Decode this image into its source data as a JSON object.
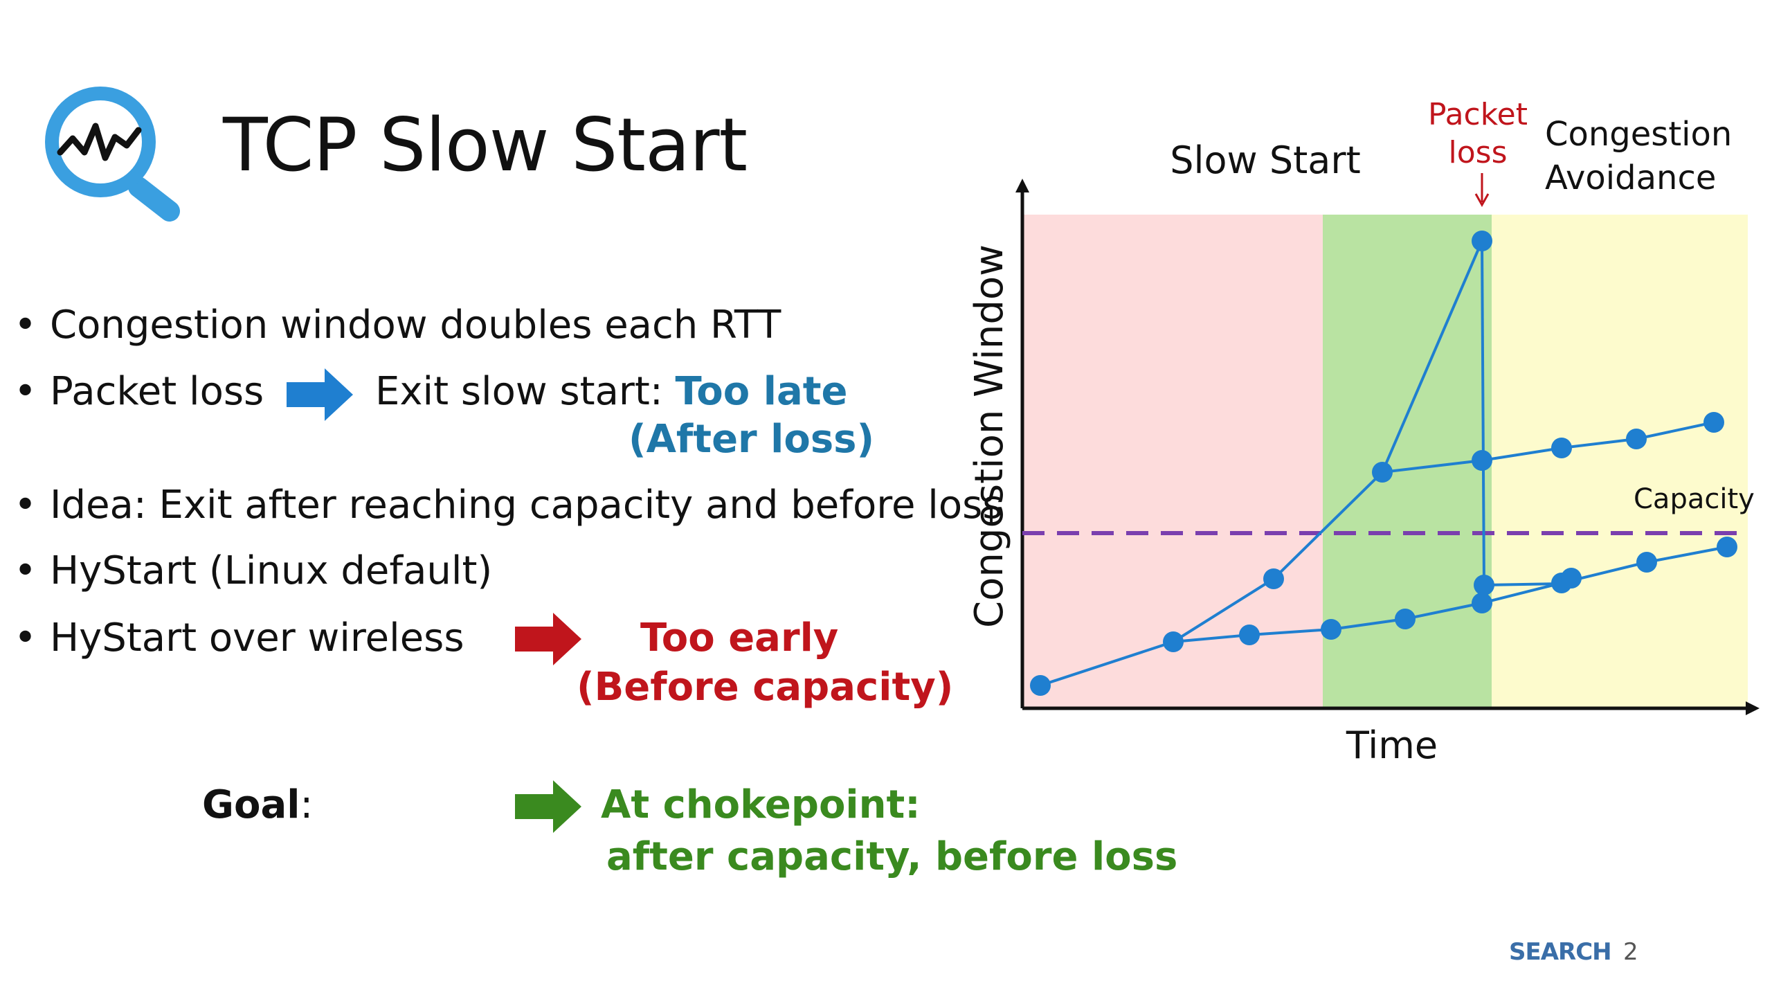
{
  "slide": {
    "title": "TCP Slow Start",
    "page_number": "2",
    "brand": "SEARCH"
  },
  "bullets": [
    {
      "text": "Congestion window doubles each RTT"
    },
    {
      "text": "Packet loss",
      "arrow_color": "#1f7fd0",
      "result_prefix": "Exit slow start: ",
      "result_highlight": "Too late",
      "result_line2": "(After loss)"
    },
    {
      "text": "Idea: Exit after reaching capacity and before loss"
    },
    {
      "text": "HyStart (Linux default)"
    },
    {
      "text": "HyStart over wireless",
      "arrow_color": "#c0151c",
      "result_highlight": "Too early",
      "result_line2": "(Before capacity)"
    }
  ],
  "goal": {
    "label": "Goal",
    "colon": ":",
    "arrow_color": "#3a8a1f",
    "line1": "At chokepoint:",
    "line2": "after capacity, before loss"
  },
  "diagram": {
    "ylabel": "Congestion Window",
    "xlabel": "Time",
    "phase_slow_start": "Slow Start",
    "phase_ca_line1": "Congestion",
    "phase_ca_line2": "Avoidance",
    "packet_loss_line1": "Packet",
    "packet_loss_line2": "loss",
    "capacity_label": "Capacity",
    "colors": {
      "slow_start_bg": "#fddcdc",
      "middle_bg": "#b9e3a2",
      "ca_bg": "#fdfbcd",
      "series": "#1f7fd0",
      "capacity_line": "#7a3fae",
      "packet_loss_text": "#c0151c"
    }
  }
}
